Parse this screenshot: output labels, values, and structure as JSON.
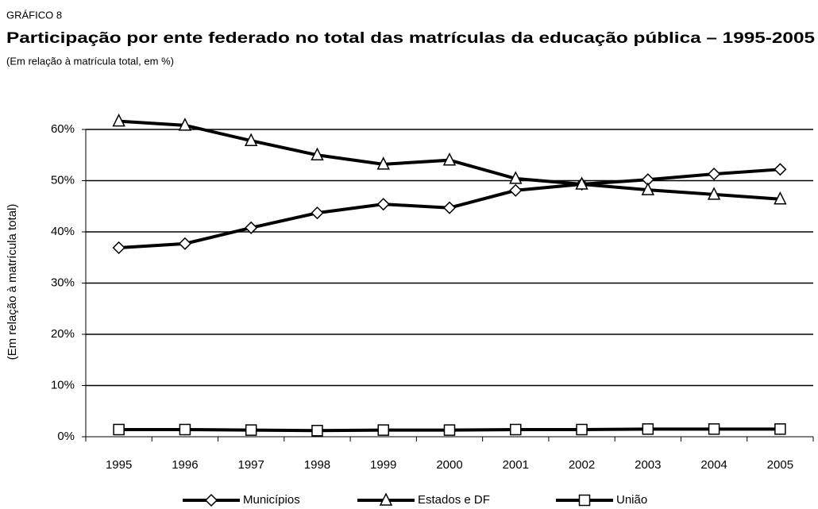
{
  "chart_data": {
    "type": "line",
    "label": "GRÁFICO 8",
    "title": "Participação por ente federado no total das matrículas da educação pública –  1995-2005",
    "subtitle": "(Em relação à matrícula total, em %)",
    "y_label": "(Em relação à matrícula total)",
    "categories": [
      "1995",
      "1996",
      "1997",
      "1998",
      "1999",
      "2000",
      "2001",
      "2002",
      "2003",
      "2004",
      "2005"
    ],
    "series": [
      {
        "name": "Municípios",
        "color": "#000000",
        "marker": "diamond",
        "values": [
          36.9,
          37.7,
          40.8,
          43.7,
          45.4,
          44.7,
          48.1,
          49.3,
          50.2,
          51.3,
          52.2
        ]
      },
      {
        "name": "Estados e DF",
        "color": "#000000",
        "marker": "triangle",
        "values": [
          61.6,
          60.8,
          57.8,
          55.0,
          53.2,
          54.0,
          50.4,
          49.3,
          48.2,
          47.3,
          46.4
        ]
      },
      {
        "name": "União",
        "color": "#000000",
        "marker": "square",
        "values": [
          1.4,
          1.4,
          1.3,
          1.2,
          1.3,
          1.3,
          1.4,
          1.4,
          1.5,
          1.5,
          1.5
        ]
      }
    ],
    "ylim": [
      0,
      70
    ],
    "yticks": [
      {
        "value": 0,
        "label": "0%"
      },
      {
        "value": 10,
        "label": "10%"
      },
      {
        "value": 20,
        "label": "20%"
      },
      {
        "value": 30,
        "label": "30%"
      },
      {
        "value": 40,
        "label": "40%"
      },
      {
        "value": 50,
        "label": "50%"
      },
      {
        "value": 60,
        "label": "60%"
      }
    ],
    "grid": true,
    "legend": "bottom"
  }
}
